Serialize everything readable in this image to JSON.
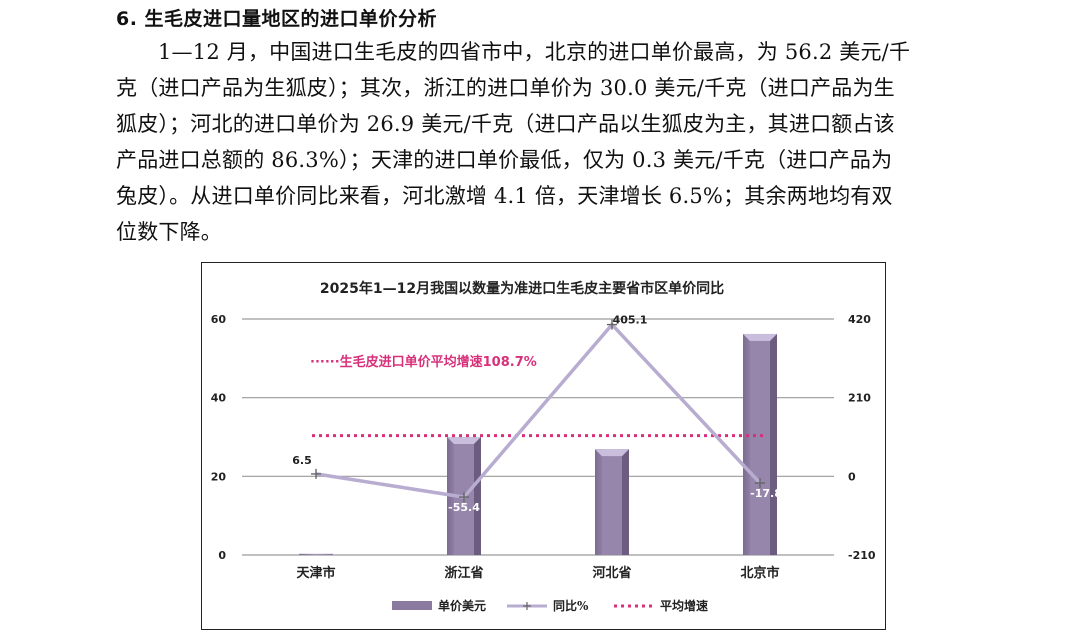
{
  "heading": "6. 生毛皮进口量地区的进口单价分析",
  "paragraph_lines": [
    "1—12 月，中国进口生毛皮的四省市中，北京的进口单价最高，为 56.2 美元/千",
    "克（进口产品为生狐皮）；其次，浙江的进口单价为 30.0 美元/千克（进口产品为生",
    "狐皮）；河北的进口单价为 26.9 美元/千克（进口产品以生狐皮为主，其进口额占该",
    "产品进口总额的 86.3%）；天津的进口单价最低，仅为 0.3 美元/千克（进口产品为",
    "兔皮）。从进口单价同比来看，河北激增 4.1 倍，天津增长 6.5%；其余两地均有双",
    "位数下降。"
  ],
  "chart_data": {
    "type": "bar",
    "title": "2025年1—12月我国以数量为准进口生毛皮主要省市区单价同比",
    "categories": [
      "天津市",
      "浙江省",
      "河北省",
      "北京市"
    ],
    "series": [
      {
        "name": "单价美元",
        "type": "bar",
        "axis": "left",
        "values": [
          0.3,
          30.0,
          26.9,
          56.2
        ],
        "color": "#9a8aad"
      },
      {
        "name": "同比%",
        "type": "line",
        "axis": "right",
        "values": [
          6.5,
          -55.4,
          405.1,
          -17.8
        ],
        "labels": [
          "6.5",
          "-55.4",
          "405.1",
          "-17.8"
        ],
        "color": "#b8acd0"
      },
      {
        "name": "平均增速",
        "type": "reference",
        "axis": "right",
        "value": 108.7,
        "color": "#d8307a"
      }
    ],
    "annotation": "生毛皮进口单价平均增速108.7%",
    "left_axis": {
      "ylim": [
        0,
        60
      ],
      "ticks": [
        "0",
        "20",
        "40",
        "60"
      ]
    },
    "right_axis": {
      "ylim": [
        -210,
        420
      ],
      "ticks": [
        "-210",
        "0",
        "210",
        "420"
      ]
    },
    "grid": true,
    "legend_position": "bottom"
  }
}
